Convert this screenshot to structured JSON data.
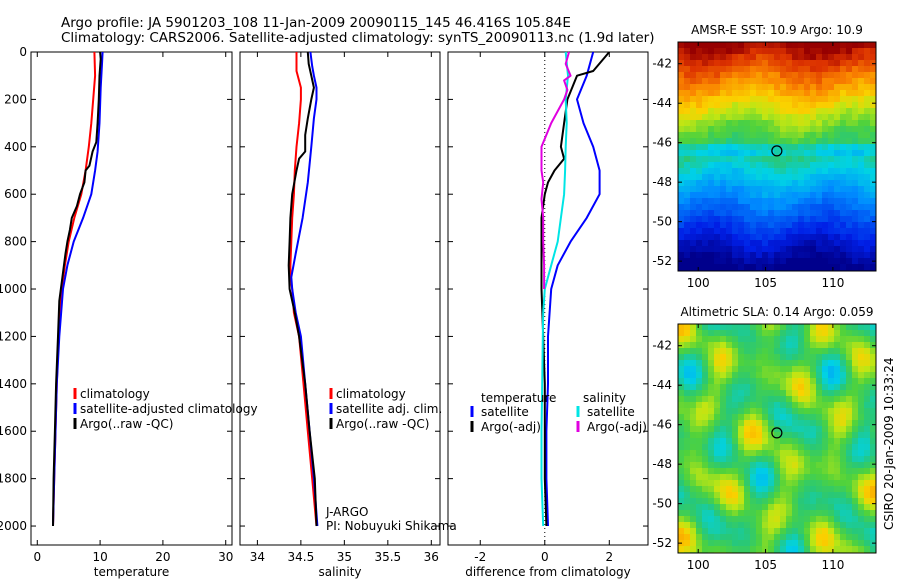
{
  "header": {
    "title_line1": "Argo profile: JA 5901203_108 11-Jan-2009 20090115_145 46.416S 105.84E",
    "title_line2": "Climatology: CARS2006. Satellite-adjusted climatology: synTS_20090113.nc (1.9d later)"
  },
  "credit": "CSIRO 20-Jan-2009 10:33:24",
  "colors": {
    "climatology": "#ff0000",
    "satellite": "#0000ff",
    "argo": "#000000",
    "temp_satellite_diff": "#00e5e5",
    "salinity_argo_diff": "#e000e0",
    "marker": "#000000"
  },
  "chart_data": [
    {
      "id": "temperature-profile",
      "type": "line",
      "xlabel": "temperature",
      "ylabel": "",
      "xlim": [
        -1,
        31
      ],
      "ylim": [
        2080,
        0
      ],
      "x_ticks": [
        0,
        10,
        20,
        30
      ],
      "y_ticks": [
        0,
        200,
        400,
        600,
        800,
        1000,
        1200,
        1400,
        1600,
        1800,
        2000
      ],
      "legend_position": "bottom-right",
      "legend": [
        "climatology",
        "satellite-adjusted climatology",
        "Argo(..raw -QC)"
      ],
      "series": [
        {
          "name": "climatology",
          "color": "#ff0000",
          "points": [
            [
              9.1,
              0
            ],
            [
              9.2,
              100
            ],
            [
              8.9,
              200
            ],
            [
              8.6,
              300
            ],
            [
              8.2,
              400
            ],
            [
              7.7,
              500
            ],
            [
              7.0,
              600
            ],
            [
              5.9,
              700
            ],
            [
              5.0,
              800
            ],
            [
              4.4,
              900
            ],
            [
              3.9,
              1000
            ],
            [
              3.4,
              1200
            ],
            [
              3.1,
              1400
            ],
            [
              2.9,
              1600
            ],
            [
              2.7,
              1800
            ],
            [
              2.5,
              2000
            ]
          ]
        },
        {
          "name": "satellite-adjusted climatology",
          "color": "#0000ff",
          "points": [
            [
              10.4,
              0
            ],
            [
              10.3,
              50
            ],
            [
              10.1,
              150
            ],
            [
              9.9,
              300
            ],
            [
              9.6,
              420
            ],
            [
              9.2,
              500
            ],
            [
              8.6,
              600
            ],
            [
              7.3,
              700
            ],
            [
              5.8,
              800
            ],
            [
              4.8,
              900
            ],
            [
              4.1,
              1000
            ],
            [
              3.5,
              1200
            ],
            [
              3.1,
              1400
            ],
            [
              2.9,
              1600
            ],
            [
              2.7,
              1800
            ],
            [
              2.5,
              2000
            ]
          ]
        },
        {
          "name": "Argo(..raw -QC)",
          "color": "#000000",
          "points": [
            [
              10.0,
              0
            ],
            [
              10.1,
              30
            ],
            [
              9.9,
              100
            ],
            [
              9.8,
              200
            ],
            [
              9.6,
              300
            ],
            [
              9.4,
              380
            ],
            [
              8.8,
              420
            ],
            [
              8.3,
              480
            ],
            [
              7.7,
              500
            ],
            [
              7.5,
              550
            ],
            [
              6.8,
              600
            ],
            [
              6.3,
              650
            ],
            [
              5.5,
              700
            ],
            [
              5.2,
              750
            ],
            [
              4.8,
              800
            ],
            [
              4.5,
              850
            ],
            [
              4.0,
              950
            ],
            [
              3.5,
              1050
            ],
            [
              3.3,
              1200
            ],
            [
              3.0,
              1400
            ],
            [
              2.8,
              1600
            ],
            [
              2.6,
              1800
            ],
            [
              2.5,
              2000
            ]
          ]
        }
      ]
    },
    {
      "id": "salinity-profile",
      "type": "line",
      "xlabel": "salinity",
      "ylabel": "",
      "xlim": [
        33.8,
        36.1
      ],
      "ylim": [
        2080,
        0
      ],
      "x_ticks": [
        34,
        34.5,
        35,
        35.5,
        36
      ],
      "legend_position": "bottom-right",
      "legend": [
        "climatology",
        "satellite adj. clim.",
        "Argo(..raw -QC)"
      ],
      "annotations": [
        "J-ARGO",
        "PI: Nobuyuki Shikama"
      ],
      "series": [
        {
          "name": "climatology",
          "color": "#ff0000",
          "points": [
            [
              34.45,
              0
            ],
            [
              34.45,
              80
            ],
            [
              34.5,
              150
            ],
            [
              34.5,
              200
            ],
            [
              34.48,
              300
            ],
            [
              34.45,
              400
            ],
            [
              34.43,
              500
            ],
            [
              34.42,
              600
            ],
            [
              34.4,
              700
            ],
            [
              34.39,
              800
            ],
            [
              34.38,
              900
            ],
            [
              34.38,
              950
            ],
            [
              34.4,
              1000
            ],
            [
              34.42,
              1100
            ],
            [
              34.48,
              1200
            ],
            [
              34.53,
              1400
            ],
            [
              34.58,
              1600
            ],
            [
              34.63,
              1800
            ],
            [
              34.68,
              2000
            ]
          ]
        },
        {
          "name": "satellite adj. clim.",
          "color": "#0000ff",
          "points": [
            [
              34.61,
              0
            ],
            [
              34.63,
              60
            ],
            [
              34.65,
              100
            ],
            [
              34.68,
              150
            ],
            [
              34.68,
              200
            ],
            [
              34.65,
              280
            ],
            [
              34.62,
              400
            ],
            [
              34.58,
              550
            ],
            [
              34.52,
              700
            ],
            [
              34.44,
              850
            ],
            [
              34.39,
              950
            ],
            [
              34.4,
              1000
            ],
            [
              34.44,
              1100
            ],
            [
              34.5,
              1200
            ],
            [
              34.55,
              1400
            ],
            [
              34.6,
              1600
            ],
            [
              34.65,
              1800
            ],
            [
              34.69,
              2000
            ]
          ]
        },
        {
          "name": "Argo(..raw -QC)",
          "color": "#000000",
          "points": [
            [
              34.58,
              0
            ],
            [
              34.59,
              50
            ],
            [
              34.62,
              100
            ],
            [
              34.65,
              150
            ],
            [
              34.62,
              200
            ],
            [
              34.58,
              280
            ],
            [
              34.55,
              350
            ],
            [
              34.55,
              420
            ],
            [
              34.48,
              450
            ],
            [
              34.45,
              500
            ],
            [
              34.4,
              600
            ],
            [
              34.38,
              700
            ],
            [
              34.37,
              800
            ],
            [
              34.36,
              900
            ],
            [
              34.37,
              1000
            ],
            [
              34.43,
              1100
            ],
            [
              34.48,
              1200
            ],
            [
              34.55,
              1400
            ],
            [
              34.6,
              1600
            ],
            [
              34.66,
              1800
            ],
            [
              34.68,
              2000
            ]
          ]
        }
      ]
    },
    {
      "id": "difference-profile",
      "type": "line",
      "xlabel": "difference from climatology",
      "ylabel": "",
      "xlim": [
        -3.0,
        3.2
      ],
      "ylim": [
        2080,
        0
      ],
      "x_ticks": [
        -2,
        0,
        2
      ],
      "zero_line": "dotted",
      "legend_position": "bottom",
      "legend_groups": [
        "temperature",
        "salinity"
      ],
      "legend": [
        "satellite",
        "Argo(-adj)",
        "satellite",
        "Argo(-adj)"
      ],
      "series": [
        {
          "name": "temperature satellite",
          "color": "#0000ff",
          "points": [
            [
              1.5,
              0
            ],
            [
              1.3,
              100
            ],
            [
              1.0,
              200
            ],
            [
              1.2,
              300
            ],
            [
              1.5,
              400
            ],
            [
              1.7,
              500
            ],
            [
              1.7,
              600
            ],
            [
              1.3,
              700
            ],
            [
              0.8,
              800
            ],
            [
              0.4,
              900
            ],
            [
              0.2,
              1000
            ],
            [
              0.1,
              1200
            ],
            [
              0.1,
              1400
            ],
            [
              0.05,
              1600
            ],
            [
              0.05,
              1800
            ],
            [
              0.1,
              2000
            ]
          ]
        },
        {
          "name": "temperature Argo(-adj)",
          "color": "#000000",
          "points": [
            [
              2.0,
              0
            ],
            [
              1.5,
              80
            ],
            [
              1.0,
              100
            ],
            [
              0.7,
              200
            ],
            [
              0.6,
              300
            ],
            [
              0.5,
              400
            ],
            [
              0.6,
              450
            ],
            [
              0.3,
              500
            ],
            [
              0.1,
              550
            ],
            [
              0.0,
              600
            ],
            [
              -0.1,
              700
            ],
            [
              -0.1,
              800
            ],
            [
              -0.1,
              900
            ],
            [
              -0.1,
              1000
            ],
            [
              -0.05,
              1200
            ],
            [
              0.0,
              1400
            ],
            [
              0.0,
              1600
            ],
            [
              0.0,
              1800
            ],
            [
              0.05,
              2000
            ]
          ]
        },
        {
          "name": "salinity satellite",
          "color": "#00e5e5",
          "points": [
            [
              0.65,
              0
            ],
            [
              0.72,
              100
            ],
            [
              0.65,
              200
            ],
            [
              0.68,
              300
            ],
            [
              0.65,
              400
            ],
            [
              0.63,
              500
            ],
            [
              0.6,
              600
            ],
            [
              0.5,
              700
            ],
            [
              0.4,
              800
            ],
            [
              0.2,
              900
            ],
            [
              0.0,
              1000
            ],
            [
              -0.05,
              1100
            ],
            [
              -0.06,
              1200
            ],
            [
              -0.08,
              1400
            ],
            [
              -0.1,
              1600
            ],
            [
              -0.1,
              1800
            ],
            [
              -0.05,
              2000
            ]
          ]
        },
        {
          "name": "salinity Argo(-adj)",
          "color": "#e000e0",
          "points": [
            [
              0.75,
              0
            ],
            [
              0.65,
              50
            ],
            [
              0.8,
              100
            ],
            [
              0.6,
              120
            ],
            [
              0.7,
              160
            ],
            [
              0.6,
              200
            ],
            [
              0.2,
              300
            ],
            [
              -0.1,
              400
            ],
            [
              -0.1,
              500
            ],
            [
              -0.05,
              550
            ],
            [
              -0.1,
              620
            ],
            [
              -0.05,
              700
            ],
            [
              -0.05,
              800
            ],
            [
              -0.02,
              900
            ],
            [
              -0.02,
              1000
            ]
          ]
        }
      ]
    },
    {
      "id": "amsr-e-sst-map",
      "type": "heatmap",
      "title": "AMSR-E SST: 10.9 Argo: 10.9",
      "xlim": [
        98.5,
        113.2
      ],
      "ylim": [
        -52.5,
        -40.9
      ],
      "x_ticks": [
        100,
        105,
        110
      ],
      "y_ticks": [
        -42,
        -44,
        -46,
        -48,
        -50,
        -52
      ],
      "marker": {
        "lon": 105.84,
        "lat": -46.416
      },
      "note": "sea surface temperature field; warm (red) in the north to cold (blue) in the south"
    },
    {
      "id": "altimetric-sla-map",
      "type": "heatmap",
      "title": "Altimetric SLA: 0.14 Argo: 0.059",
      "xlim": [
        98.5,
        113.2
      ],
      "ylim": [
        -52.5,
        -40.9
      ],
      "x_ticks": [
        100,
        105,
        110
      ],
      "y_ticks": [
        -42,
        -44,
        -46,
        -48,
        -50,
        -52
      ],
      "marker": {
        "lon": 105.84,
        "lat": -46.416
      },
      "note": "sea level anomaly field; mostly green with blue, yellow and orange eddies"
    }
  ]
}
